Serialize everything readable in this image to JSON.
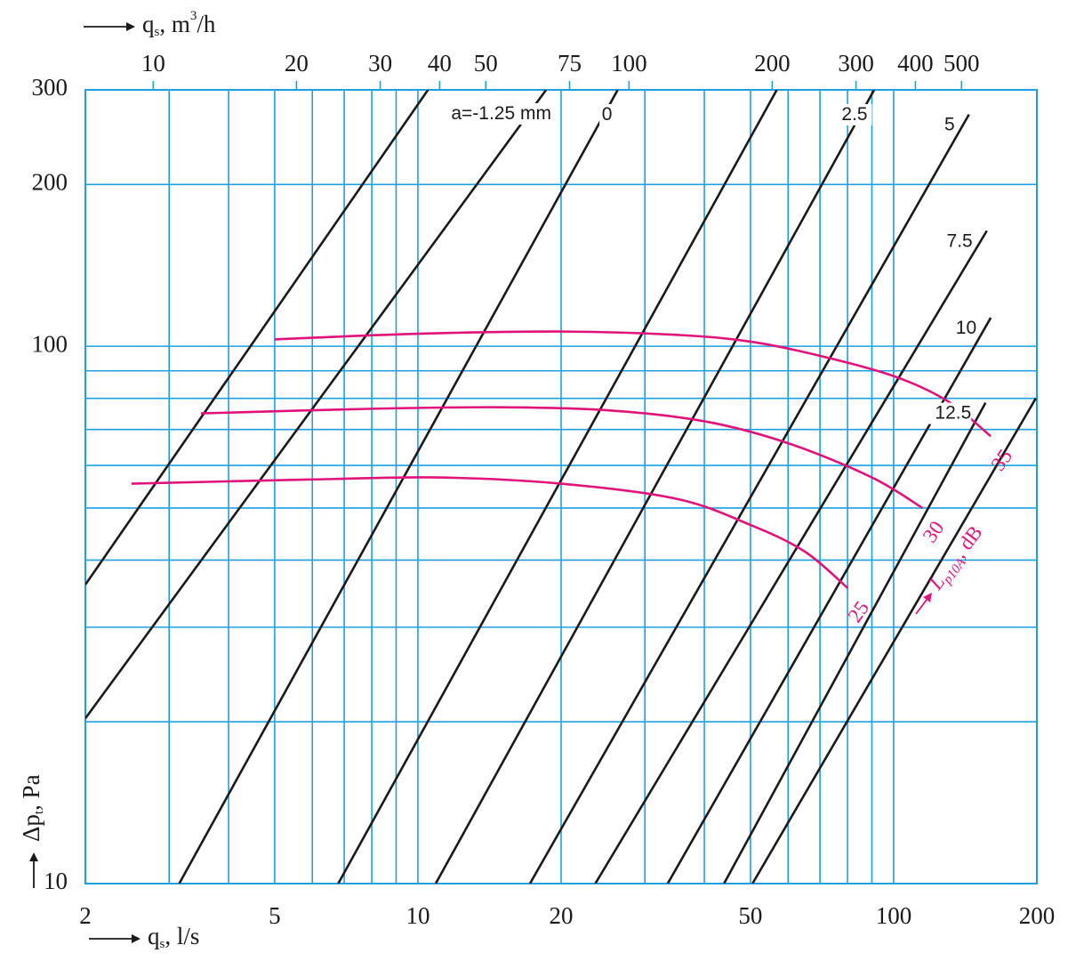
{
  "chart_data": {
    "type": "line",
    "x_scale": "log",
    "y_scale": "log",
    "xlim": [
      2,
      200
    ],
    "ylim": [
      10,
      300
    ],
    "grid": true,
    "xlabel": "q",
    "xlabel_sub": "s",
    "xlabel_tail": ", l/s",
    "x2label": "q",
    "x2label_sub": "s",
    "x2label_mid": ", m",
    "x2label_sup": "3",
    "x2label_tail": "/h",
    "ylabel": "Δp",
    "ylabel_sub": "t",
    "ylabel_tail": ", Pa",
    "x_ticks": [
      {
        "v": 2,
        "label": "2"
      },
      {
        "v": 5,
        "label": "5"
      },
      {
        "v": 10,
        "label": "10"
      },
      {
        "v": 20,
        "label": "20"
      },
      {
        "v": 50,
        "label": "50"
      },
      {
        "v": 100,
        "label": "100"
      },
      {
        "v": 200,
        "label": "200"
      }
    ],
    "y_ticks": [
      {
        "v": 10,
        "label": "10"
      },
      {
        "v": 100,
        "label": "100"
      },
      {
        "v": 200,
        "label": "200"
      },
      {
        "v": 300,
        "label": "300"
      }
    ],
    "x2_ticks": [
      {
        "v": 10,
        "label": "10"
      },
      {
        "v": 20,
        "label": "20"
      },
      {
        "v": 30,
        "label": "30"
      },
      {
        "v": 40,
        "label": "40"
      },
      {
        "v": 50,
        "label": "50"
      },
      {
        "v": 75,
        "label": "75"
      },
      {
        "v": 100,
        "label": "100"
      },
      {
        "v": 200,
        "label": "200"
      },
      {
        "v": 300,
        "label": "300"
      },
      {
        "v": 400,
        "label": "400"
      },
      {
        "v": 500,
        "label": "500"
      }
    ],
    "x_grid": [
      3,
      4,
      5,
      6,
      7,
      8,
      9,
      10,
      20,
      30,
      40,
      50,
      60,
      70,
      80,
      90,
      100
    ],
    "y_grid": [
      20,
      30,
      40,
      50,
      60,
      70,
      80,
      90,
      100,
      200
    ],
    "iso_lines": [
      {
        "label": "a=-1.25 mm",
        "points": [
          [
            2,
            36.0
          ],
          [
            10.5,
            300
          ]
        ]
      },
      {
        "label": "",
        "points": [
          [
            2,
            20.3
          ],
          [
            18.6,
            300
          ]
        ]
      },
      {
        "label": "0",
        "points": [
          [
            3.15,
            10
          ],
          [
            26.3,
            300
          ]
        ]
      },
      {
        "label": "",
        "points": [
          [
            6.8,
            10
          ],
          [
            56.8,
            300
          ]
        ]
      },
      {
        "label": "2.5",
        "points": [
          [
            10.9,
            10
          ],
          [
            91.0,
            300
          ]
        ]
      },
      {
        "label": "5",
        "points": [
          [
            17.2,
            10
          ],
          [
            144.0,
            270
          ]
        ]
      },
      {
        "label": "7.5",
        "points": [
          [
            23.6,
            10
          ],
          [
            157.0,
            164
          ]
        ]
      },
      {
        "label": "10",
        "points": [
          [
            33.5,
            10
          ],
          [
            160.0,
            113
          ]
        ]
      },
      {
        "label": "12.5",
        "points": [
          [
            44.0,
            10
          ],
          [
            156.0,
            78.5
          ]
        ]
      },
      {
        "label": "",
        "points": [
          [
            50.5,
            10
          ],
          [
            199.0,
            80.0
          ]
        ]
      }
    ],
    "series": [
      {
        "name": "35",
        "points": [
          [
            5,
            103
          ],
          [
            10,
            105.5
          ],
          [
            20,
            106.5
          ],
          [
            35,
            105
          ],
          [
            50,
            102
          ],
          [
            70,
            96
          ],
          [
            100,
            88
          ],
          [
            130,
            79
          ],
          [
            160,
            68
          ]
        ]
      },
      {
        "name": "30",
        "points": [
          [
            3.5,
            75
          ],
          [
            8,
            76.5
          ],
          [
            15,
            77
          ],
          [
            25,
            76
          ],
          [
            40,
            72.5
          ],
          [
            60,
            66
          ],
          [
            90,
            57
          ],
          [
            115,
            50
          ]
        ]
      },
      {
        "name": "25",
        "points": [
          [
            2.5,
            55.5
          ],
          [
            6,
            56.5
          ],
          [
            11,
            57
          ],
          [
            20,
            55.5
          ],
          [
            35,
            52
          ],
          [
            50,
            46.5
          ],
          [
            65,
            41.5
          ],
          [
            80,
            35.5
          ]
        ]
      }
    ],
    "series_label": "L",
    "series_label_sub": "p10A",
    "series_label_tail": ", dB"
  }
}
